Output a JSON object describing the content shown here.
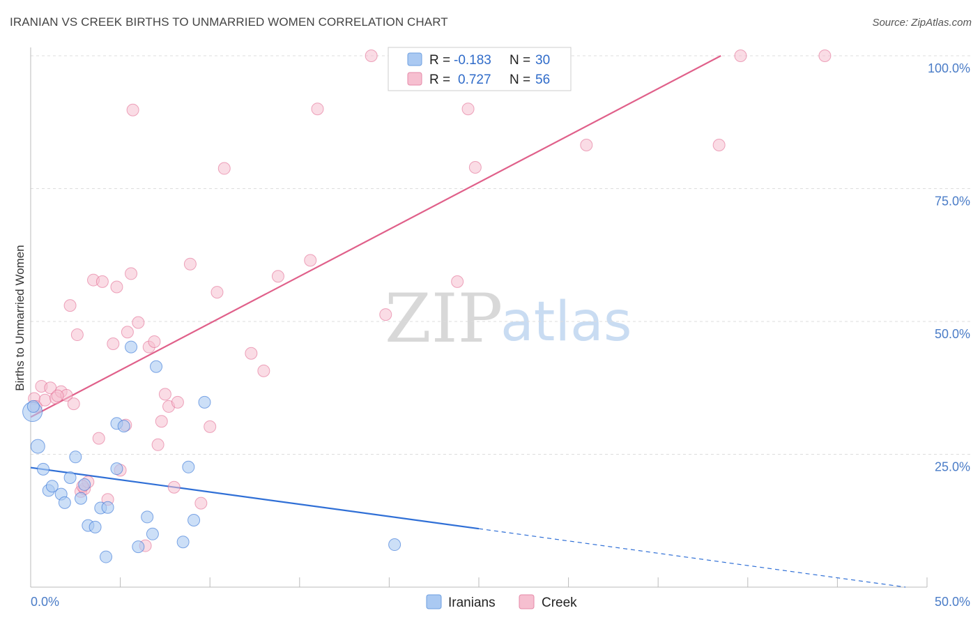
{
  "title": "IRANIAN VS CREEK BIRTHS TO UNMARRIED WOMEN CORRELATION CHART",
  "source": "Source: ZipAtlas.com",
  "watermark": {
    "zip": "ZIP",
    "atlas": "atlas"
  },
  "colors": {
    "iranians": "#2f6fd6",
    "iranians_fill": "#aac9f2",
    "creek": "#e0608a",
    "creek_fill": "#f6bfd0",
    "axis_text": "#4a7cc7",
    "grid": "#dddddd"
  },
  "chart_data": {
    "type": "scatter",
    "xlabel": "",
    "ylabel": "Births to Unmarried Women",
    "xlim": [
      0,
      50
    ],
    "ylim": [
      0,
      100
    ],
    "x_tick_labels": [
      "0.0%",
      "50.0%"
    ],
    "y_ticks": [
      25,
      50,
      75,
      100
    ],
    "y_tick_labels": [
      "25.0%",
      "50.0%",
      "75.0%",
      "100.0%"
    ],
    "legend": {
      "iranians": {
        "r_label": "R =",
        "r_value": "-0.183",
        "n_label": "N =",
        "n_value": "30"
      },
      "creek": {
        "r_label": "R =",
        "r_value": "0.727",
        "n_label": "N =",
        "n_value": "56"
      }
    },
    "series": [
      {
        "name": "Iranians",
        "trend": {
          "x0": 0,
          "y0": 22.5,
          "x1": 25,
          "y1": 11.0,
          "dash_to_x": 48.8,
          "dash_to_y": 0
        },
        "points": [
          [
            0.1,
            33.0
          ],
          [
            0.4,
            26.5
          ],
          [
            0.7,
            22.2
          ],
          [
            1.0,
            18.2
          ],
          [
            1.2,
            19.0
          ],
          [
            1.7,
            17.5
          ],
          [
            1.9,
            15.9
          ],
          [
            2.2,
            20.6
          ],
          [
            2.5,
            24.5
          ],
          [
            2.8,
            16.7
          ],
          [
            3.0,
            19.3
          ],
          [
            3.2,
            11.6
          ],
          [
            3.6,
            11.3
          ],
          [
            3.9,
            14.9
          ],
          [
            4.2,
            5.7
          ],
          [
            4.3,
            15.0
          ],
          [
            4.8,
            22.3
          ],
          [
            4.8,
            30.8
          ],
          [
            5.2,
            30.3
          ],
          [
            5.6,
            45.2
          ],
          [
            6.0,
            7.6
          ],
          [
            6.5,
            13.2
          ],
          [
            6.8,
            10.0
          ],
          [
            7.0,
            41.5
          ],
          [
            8.5,
            8.5
          ],
          [
            8.8,
            22.6
          ],
          [
            9.1,
            12.6
          ],
          [
            9.7,
            34.8
          ],
          [
            20.3,
            8.0
          ],
          [
            0.15,
            34.0
          ]
        ]
      },
      {
        "name": "Creek",
        "trend": {
          "x0": 0,
          "y0": 32.0,
          "x1": 38.5,
          "y1": 100.0
        },
        "points": [
          [
            0.2,
            35.5
          ],
          [
            0.3,
            34.0
          ],
          [
            0.6,
            37.8
          ],
          [
            0.8,
            35.2
          ],
          [
            1.1,
            37.5
          ],
          [
            1.4,
            35.6
          ],
          [
            1.7,
            36.8
          ],
          [
            2.0,
            36.1
          ],
          [
            2.2,
            53.0
          ],
          [
            2.4,
            34.5
          ],
          [
            2.6,
            47.5
          ],
          [
            2.8,
            18.0
          ],
          [
            3.0,
            18.5
          ],
          [
            3.2,
            19.8
          ],
          [
            3.5,
            57.8
          ],
          [
            3.8,
            28.0
          ],
          [
            4.0,
            57.5
          ],
          [
            4.3,
            16.5
          ],
          [
            4.6,
            45.8
          ],
          [
            4.8,
            56.5
          ],
          [
            5.0,
            22.0
          ],
          [
            5.4,
            48.0
          ],
          [
            5.6,
            59.0
          ],
          [
            5.7,
            89.8
          ],
          [
            6.0,
            49.8
          ],
          [
            6.4,
            7.8
          ],
          [
            6.6,
            45.2
          ],
          [
            6.9,
            46.2
          ],
          [
            7.1,
            26.8
          ],
          [
            7.3,
            31.2
          ],
          [
            7.5,
            36.3
          ],
          [
            7.7,
            34.0
          ],
          [
            8.0,
            18.8
          ],
          [
            8.2,
            34.8
          ],
          [
            8.9,
            60.8
          ],
          [
            9.5,
            15.8
          ],
          [
            10.0,
            30.2
          ],
          [
            10.4,
            55.5
          ],
          [
            10.8,
            78.8
          ],
          [
            12.3,
            44.0
          ],
          [
            13.0,
            40.7
          ],
          [
            13.8,
            58.5
          ],
          [
            15.6,
            61.5
          ],
          [
            16.0,
            90.0
          ],
          [
            19.0,
            100.0
          ],
          [
            19.8,
            51.3
          ],
          [
            23.8,
            57.5
          ],
          [
            24.4,
            90.0
          ],
          [
            24.8,
            79.0
          ],
          [
            31.0,
            83.2
          ],
          [
            38.4,
            83.2
          ],
          [
            39.6,
            100.0
          ],
          [
            44.3,
            100.0
          ],
          [
            1.5,
            36.0
          ],
          [
            5.3,
            30.5
          ],
          [
            2.9,
            19.0
          ]
        ]
      }
    ],
    "bottom_legend": [
      "Iranians",
      "Creek"
    ]
  }
}
